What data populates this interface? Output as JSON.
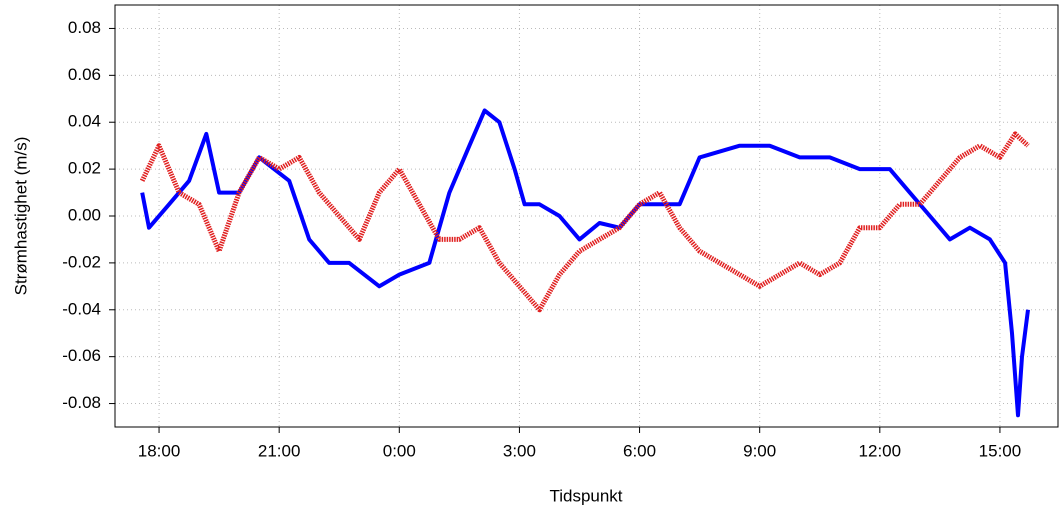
{
  "chart_data": {
    "type": "line",
    "xlabel": "Tidspunkt",
    "ylabel": "Strømhastighet (m/s)",
    "xlim": [
      16.9,
      40.45
    ],
    "xticks": [
      {
        "value": 18,
        "label": "18:00"
      },
      {
        "value": 21,
        "label": "21:00"
      },
      {
        "value": 24,
        "label": "0:00"
      },
      {
        "value": 27,
        "label": "3:00"
      },
      {
        "value": 30,
        "label": "6:00"
      },
      {
        "value": 33,
        "label": "9:00"
      },
      {
        "value": 36,
        "label": "12:00"
      },
      {
        "value": 39,
        "label": "15:00"
      }
    ],
    "ylim": [
      -0.09,
      0.09
    ],
    "yticks": [
      0.08,
      0.06,
      0.04,
      0.02,
      {
        "value": 0,
        "label": "0.00"
      },
      -0.02,
      -0.04,
      -0.06,
      -0.08
    ],
    "grid": true,
    "series": [
      {
        "color": "#0000ff",
        "style": "solid",
        "x": [
          17.58,
          17.75,
          18.25,
          18.75,
          19.18,
          19.5,
          20,
          20.5,
          21.25,
          21.75,
          22.25,
          22.75,
          23.5,
          24,
          24.75,
          25.25,
          25.75,
          26.13,
          26.5,
          26.88,
          27.13,
          27.5,
          28,
          28.5,
          29,
          29.5,
          30,
          30.5,
          31,
          31.5,
          32.5,
          33.25,
          34,
          34.75,
          35.5,
          36.25,
          36.75,
          37.25,
          37.75,
          38.25,
          38.75,
          39.13,
          39.3,
          39.45,
          39.55,
          39.7
        ],
        "values": [
          0.01,
          -0.005,
          0.005,
          0.015,
          0.035,
          0.01,
          0.01,
          0.025,
          0.015,
          -0.01,
          -0.02,
          -0.02,
          -0.03,
          -0.025,
          -0.02,
          0.01,
          0.03,
          0.045,
          0.04,
          0.02,
          0.005,
          0.005,
          0.0,
          -0.01,
          -0.003,
          -0.005,
          0.005,
          0.005,
          0.005,
          0.025,
          0.03,
          0.03,
          0.025,
          0.025,
          0.02,
          0.02,
          0.01,
          0.0,
          -0.01,
          -0.005,
          -0.01,
          -0.02,
          -0.05,
          -0.085,
          -0.06,
          -0.04
        ]
      },
      {
        "color": "#e02020",
        "style": "dashed",
        "x": [
          17.58,
          18,
          18.5,
          19,
          19.5,
          20,
          20.5,
          21,
          21.5,
          22,
          22.5,
          23,
          23.5,
          24,
          24.5,
          25,
          25.5,
          26,
          26.5,
          27,
          27.5,
          28,
          28.5,
          29,
          29.5,
          30,
          30.5,
          31,
          31.5,
          32,
          32.5,
          33,
          33.5,
          34,
          34.5,
          35,
          35.5,
          36,
          36.5,
          37,
          37.5,
          38,
          38.5,
          39,
          39.38,
          39.7
        ],
        "values": [
          0.015,
          0.03,
          0.01,
          0.005,
          -0.015,
          0.01,
          0.025,
          0.02,
          0.025,
          0.01,
          0.0,
          -0.01,
          0.01,
          0.02,
          0.005,
          -0.01,
          -0.01,
          -0.005,
          -0.02,
          -0.03,
          -0.04,
          -0.025,
          -0.015,
          -0.01,
          -0.005,
          0.005,
          0.01,
          -0.005,
          -0.015,
          -0.02,
          -0.025,
          -0.03,
          -0.025,
          -0.02,
          -0.025,
          -0.02,
          -0.005,
          -0.005,
          0.005,
          0.005,
          0.015,
          0.025,
          0.03,
          0.025,
          0.035,
          0.03
        ]
      }
    ]
  }
}
